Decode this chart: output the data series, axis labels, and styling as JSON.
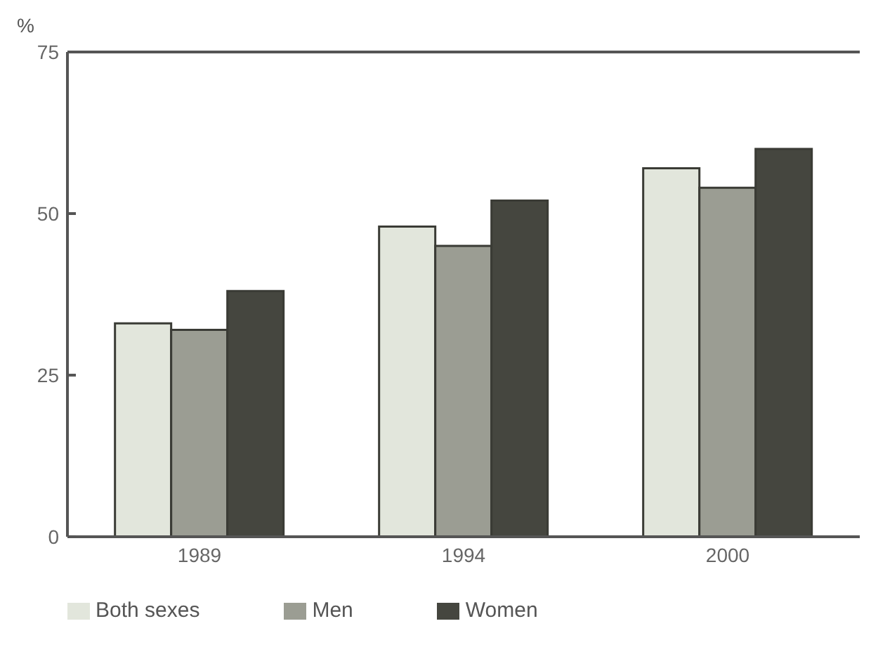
{
  "chart_data": {
    "type": "bar",
    "ylabel": "%",
    "categories": [
      "1989",
      "1994",
      "2000"
    ],
    "series": [
      {
        "name": "Both sexes",
        "color": "#e2e6dc",
        "values": [
          33,
          48,
          57
        ]
      },
      {
        "name": "Men",
        "color": "#9b9d93",
        "values": [
          32,
          45,
          54
        ]
      },
      {
        "name": "Women",
        "color": "#45463f",
        "values": [
          38,
          52,
          60
        ]
      }
    ],
    "ylim": [
      0,
      75
    ],
    "yticks": [
      0,
      25,
      50,
      75
    ],
    "grid": false,
    "legend": "bottom left"
  }
}
